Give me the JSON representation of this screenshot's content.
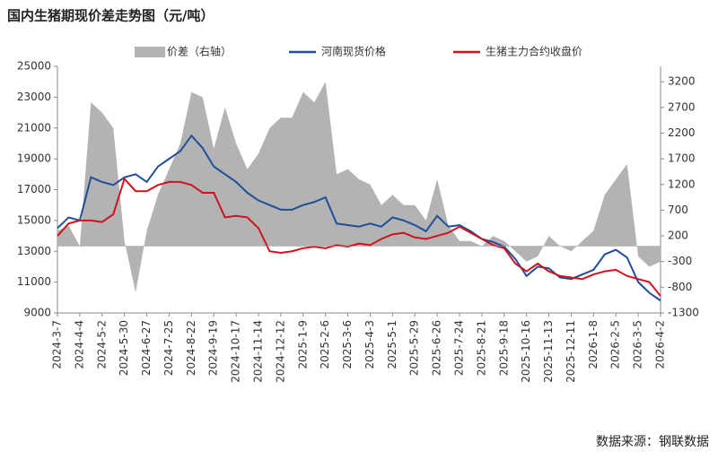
{
  "chart_data": {
    "type": "line",
    "title": "国内生猪期现价差走势图（元/吨）",
    "source": "数据来源：钢联数据",
    "categories": [
      "2024-3-7",
      null,
      "2024-4-4",
      null,
      "2024-5-2",
      null,
      "2024-5-30",
      null,
      "2024-6-27",
      null,
      "2024-7-25",
      null,
      "2024-8-22",
      null,
      "2024-9-19",
      null,
      "2024-10-17",
      null,
      "2024-11-14",
      null,
      "2024-12-12",
      null,
      "2025-1-9",
      null,
      "2025-2-6",
      null,
      "2025-3-6",
      null,
      "2025-4-3",
      null,
      "2025-5-1",
      null,
      "2025-5-29",
      null,
      "2025-6-26",
      null,
      "2025-7-24",
      null,
      "2025-8-21",
      null,
      "2025-9-18",
      null,
      "2025-10-16",
      null,
      "2025-11-13",
      null,
      "2025-12-11",
      null,
      "2026-1-8",
      null,
      "2026-2-5",
      null,
      "2026-3-5",
      null,
      "2026-4-2"
    ],
    "series": [
      {
        "name": "价差（右轴）",
        "color": "#b3b3b3",
        "axis": "y2",
        "values": [
          300,
          400,
          0,
          2800,
          2600,
          2300,
          100,
          -900,
          300,
          1000,
          1500,
          2000,
          3000,
          2900,
          1900,
          2700,
          2000,
          1500,
          1800,
          2300,
          2500,
          2500,
          3000,
          2800,
          3200,
          1400,
          1500,
          1300,
          1200,
          800,
          1000,
          800,
          800,
          500,
          1300,
          400,
          100,
          100,
          0,
          200,
          100,
          -100,
          -300,
          -200,
          200,
          0,
          -100,
          100,
          300,
          1000,
          1300,
          1600,
          -200,
          -400,
          -300
        ]
      },
      {
        "name": "河南现货价格",
        "color": "#1f4e9c",
        "values": [
          14500,
          15200,
          15000,
          17800,
          17500,
          17300,
          17800,
          18000,
          17500,
          18500,
          19000,
          19500,
          20500,
          19700,
          18500,
          18000,
          17500,
          16800,
          16300,
          16000,
          15700,
          15700,
          16000,
          16200,
          16500,
          14800,
          14700,
          14600,
          14800,
          14600,
          15200,
          15000,
          14700,
          14300,
          15300,
          14600,
          14700,
          14300,
          13800,
          13600,
          13300,
          12500,
          11400,
          12000,
          11900,
          11300,
          11200,
          11500,
          11800,
          12800,
          13100,
          12600,
          11000,
          10300,
          9800
        ]
      },
      {
        "name": "生猪主力合约收盘价",
        "color": "#d0121b",
        "values": [
          14000,
          14800,
          15000,
          15000,
          14900,
          15400,
          17700,
          16900,
          16900,
          17300,
          17500,
          17500,
          17300,
          16800,
          16800,
          15200,
          15300,
          15200,
          14500,
          13000,
          12900,
          13000,
          13200,
          13300,
          13200,
          13400,
          13300,
          13500,
          13400,
          13800,
          14100,
          14200,
          13900,
          13800,
          14000,
          14200,
          14600,
          14200,
          13800,
          13400,
          13200,
          12200,
          11700,
          12200,
          11700,
          11400,
          11300,
          11200,
          11500,
          11700,
          11800,
          11400,
          11200,
          11000,
          10100
        ]
      }
    ],
    "ylim": [
      9000,
      25000
    ],
    "yticks": [
      9000,
      11000,
      13000,
      15000,
      17000,
      19000,
      21000,
      23000,
      25000
    ],
    "y2lim": [
      -1300,
      3500
    ],
    "y2ticks": [
      -1300,
      -800,
      -300,
      200,
      700,
      1200,
      1700,
      2200,
      2700,
      3200
    ]
  }
}
